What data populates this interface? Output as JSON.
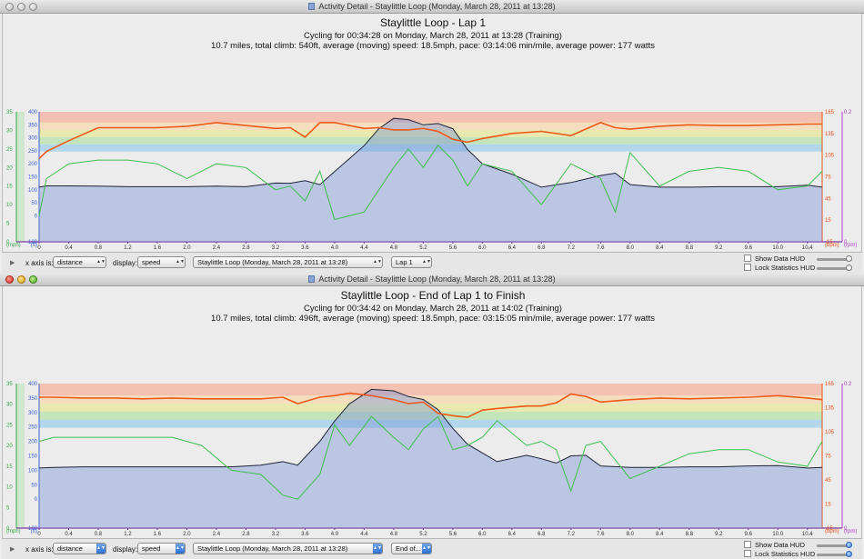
{
  "windows": [
    {
      "id": "w1",
      "window_title": "Activity Detail - Staylittle Loop  (Monday, March 28, 2011 at 13:28)",
      "title": "Staylittle Loop - Lap 1",
      "summary_line1": "Cycling for 00:34:28 on Monday, March 28, 2011 at 13:28 (Training)",
      "summary_line2": "10.7 miles, total climb: 540ft, average (moving) speed: 18.5mph, pace: 03:14:06 min/mile, average power: 177 watts",
      "controls": {
        "x_axis_label": "x axis is:",
        "x_axis_value": "distance",
        "display_label": "display:",
        "display_value": "speed",
        "activity_value": "Staylittle Loop  (Monday, March 28, 2011 at 13:28)",
        "lap_value": "Lap 1",
        "show_data_hud": "Show Data HUD",
        "lock_stats_hud": "Lock Statistics HUD"
      }
    },
    {
      "id": "w2",
      "window_title": "Activity Detail - Staylittle Loop  (Monday, March 28, 2011 at 13:28)",
      "title": "Staylittle Loop - End of Lap 1 to Finish",
      "summary_line1": "Cycling for 00:34:42 on Monday, March 28, 2011 at 14:02 (Training)",
      "summary_line2": "10.7 miles, total climb: 496ft, average (moving) speed: 18.5mph, pace: 03:15:05 min/mile, average power: 177 watts",
      "controls": {
        "x_axis_label": "x axis is:",
        "x_axis_value": "distance",
        "display_label": "display:",
        "display_value": "speed",
        "activity_value": "Staylittle Loop  (Monday, March 28, 2011 at 13:28)",
        "lap_value": "End of...",
        "show_data_hud": "Show Data HUD",
        "lock_stats_hud": "Lock Statistics HUD"
      }
    }
  ],
  "chart_data": [
    {
      "type": "line",
      "x": [
        0,
        0.1,
        0.4,
        0.8,
        1.2,
        1.6,
        2.0,
        2.4,
        2.8,
        3.2,
        3.4,
        3.6,
        3.8,
        4.0,
        4.4,
        4.6,
        4.8,
        5.0,
        5.2,
        5.4,
        5.6,
        5.8,
        6.0,
        6.4,
        6.8,
        7.2,
        7.6,
        7.8,
        8.0,
        8.4,
        8.8,
        9.2,
        9.6,
        10.0,
        10.4,
        10.6
      ],
      "xlim": [
        0,
        10.6
      ],
      "x_ticks": [
        "0",
        "0.4",
        "0.8",
        "1.2",
        "1.6",
        "2.0",
        "2.4",
        "2.8",
        "3.2",
        "3.6",
        "4.0",
        "4.4",
        "4.8",
        "5.2",
        "5.6",
        "6.0",
        "6.4",
        "6.8",
        "7.2",
        "7.6",
        "8.0",
        "8.4",
        "8.8",
        "9.2",
        "9.6",
        "10.0",
        "10.4"
      ],
      "axes": {
        "speed": {
          "unit": "(mph)",
          "ylim": [
            0,
            35
          ],
          "ticks": [
            "0",
            "5",
            "10",
            "15",
            "20",
            "25",
            "30",
            "35"
          ],
          "color": "#3aa84a"
        },
        "altitude": {
          "unit": "(ft)",
          "ylim": [
            -100,
            400
          ],
          "ticks": [
            "-100",
            "0",
            "50",
            "100",
            "150",
            "200",
            "250",
            "300",
            "350",
            "400"
          ],
          "color": "#3a5fd0"
        },
        "heart_rate": {
          "unit": "(bpm)",
          "ylim": [
            -15,
            165
          ],
          "ticks": [
            "-15",
            "15",
            "45",
            "75",
            "105",
            "135",
            "165"
          ],
          "color": "#e8501c"
        },
        "cadence": {
          "unit": "(rpm)",
          "ylim": [
            0,
            0.2
          ],
          "ticks": [
            "0",
            "0.2"
          ],
          "color": "#b040c8"
        }
      },
      "series": [
        {
          "name": "altitude",
          "color": "#5b6bb8",
          "values": [
            110,
            115,
            115,
            114,
            112,
            112,
            112,
            114,
            112,
            126,
            125,
            135,
            120,
            170,
            270,
            335,
            375,
            370,
            350,
            355,
            335,
            255,
            200,
            160,
            110,
            128,
            155,
            164,
            120,
            110,
            110,
            112,
            112,
            112,
            118,
            110
          ]
        },
        {
          "name": "speed",
          "color": "#3fc04f",
          "values": [
            7,
            17,
            21,
            22,
            22,
            21,
            17,
            21,
            20,
            14,
            15,
            11,
            19,
            6,
            8,
            14,
            20,
            25,
            20,
            26,
            22,
            15,
            21,
            19,
            10,
            21,
            17,
            8,
            24,
            15,
            19,
            20,
            19,
            14,
            15,
            19
          ]
        },
        {
          "name": "heart_rate",
          "color": "#ee5a1a",
          "values": [
            100,
            110,
            125,
            143,
            143,
            143,
            145,
            150,
            146,
            142,
            143,
            130,
            150,
            150,
            142,
            143,
            140,
            140,
            142,
            138,
            127,
            123,
            128,
            135,
            138,
            132,
            150,
            143,
            141,
            145,
            147,
            146,
            146,
            147,
            148,
            148
          ]
        }
      ],
      "zones": [
        "#f5b8a8",
        "#f7dcb6",
        "#e8e7a4",
        "#bde3b0",
        "#a8d4ec"
      ]
    },
    {
      "type": "line",
      "x": [
        0,
        0.2,
        0.6,
        1.0,
        1.4,
        1.8,
        2.2,
        2.6,
        3.0,
        3.3,
        3.5,
        3.8,
        4.0,
        4.2,
        4.5,
        4.8,
        5.0,
        5.2,
        5.4,
        5.6,
        5.8,
        6.0,
        6.2,
        6.6,
        6.8,
        7.0,
        7.2,
        7.4,
        7.6,
        8.0,
        8.4,
        8.8,
        9.2,
        9.6,
        10.0,
        10.4,
        10.6
      ],
      "xlim": [
        0,
        10.6
      ],
      "x_ticks": [
        "0",
        "0.4",
        "0.8",
        "1.2",
        "1.6",
        "2.0",
        "2.4",
        "2.8",
        "3.2",
        "3.6",
        "4.0",
        "4.4",
        "4.8",
        "5.2",
        "5.6",
        "6.0",
        "6.4",
        "6.8",
        "7.2",
        "7.6",
        "8.0",
        "8.4",
        "8.8",
        "9.2",
        "9.6",
        "10.0",
        "10.4"
      ],
      "axes": {
        "speed": {
          "unit": "(mph)",
          "ylim": [
            0,
            35
          ],
          "ticks": [
            "0",
            "5",
            "10",
            "15",
            "20",
            "25",
            "30",
            "35"
          ],
          "color": "#3aa84a"
        },
        "altitude": {
          "unit": "(ft)",
          "ylim": [
            -100,
            400
          ],
          "ticks": [
            "-100",
            "0",
            "50",
            "100",
            "150",
            "200",
            "250",
            "300",
            "350",
            "400"
          ],
          "color": "#3a5fd0"
        },
        "heart_rate": {
          "unit": "(bpm)",
          "ylim": [
            -15,
            165
          ],
          "ticks": [
            "-15",
            "15",
            "45",
            "75",
            "105",
            "135",
            "165"
          ],
          "color": "#e8501c"
        },
        "cadence": {
          "unit": "(rpm)",
          "ylim": [
            0,
            0.2
          ],
          "ticks": [
            "0",
            "0.2"
          ],
          "color": "#b040c8"
        }
      },
      "series": [
        {
          "name": "altitude",
          "color": "#5b6bb8",
          "values": [
            108,
            110,
            112,
            112,
            112,
            112,
            112,
            112,
            118,
            130,
            118,
            200,
            270,
            330,
            380,
            375,
            355,
            345,
            310,
            245,
            190,
            160,
            130,
            152,
            140,
            125,
            150,
            152,
            115,
            110,
            110,
            112,
            112,
            115,
            116,
            108,
            110
          ]
        },
        {
          "name": "speed",
          "color": "#3fc04f",
          "values": [
            21,
            22,
            22,
            22,
            22,
            22,
            20,
            14,
            13,
            8,
            7,
            13,
            25,
            20,
            27,
            22,
            19,
            24,
            27,
            19,
            20,
            22,
            26,
            20,
            21,
            19,
            9,
            20,
            21,
            12,
            15,
            18,
            19,
            19,
            16,
            15,
            21
          ]
        },
        {
          "name": "heart_rate",
          "color": "#ee5a1a",
          "values": [
            148,
            148,
            147,
            147,
            146,
            147,
            146,
            146,
            146,
            148,
            140,
            148,
            150,
            153,
            150,
            145,
            140,
            142,
            128,
            125,
            123,
            132,
            134,
            137,
            137,
            141,
            152,
            149,
            142,
            145,
            147,
            146,
            147,
            148,
            150,
            147,
            145
          ]
        }
      ],
      "zones": [
        "#f5b8a8",
        "#f7dcb6",
        "#e8e7a4",
        "#bde3b0",
        "#a8d4ec"
      ]
    }
  ]
}
